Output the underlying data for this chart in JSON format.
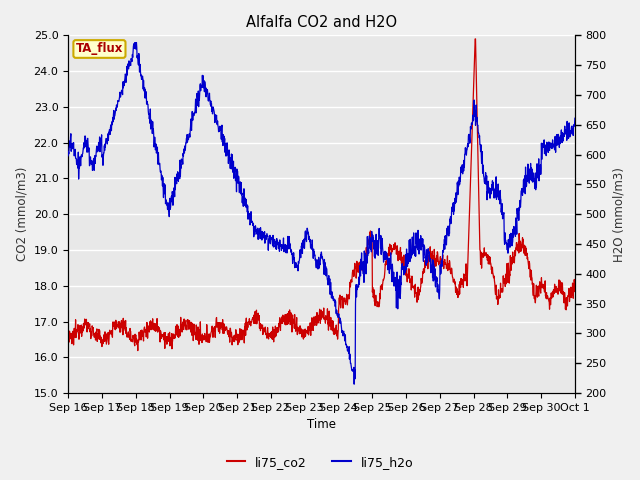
{
  "title": "Alfalfa CO2 and H2O",
  "xlabel": "Time",
  "ylabel_left": "CO2 (mmol/m3)",
  "ylabel_right": "H2O (mmol/m3)",
  "legend_label1": "li75_co2",
  "legend_label2": "li75_h2o",
  "annotation": "TA_flux",
  "color_co2": "#cc0000",
  "color_h2o": "#0000cc",
  "ylim_left": [
    15.0,
    25.0
  ],
  "ylim_right": [
    200,
    800
  ],
  "yticks_left": [
    15.0,
    16.0,
    17.0,
    18.0,
    19.0,
    20.0,
    21.0,
    22.0,
    23.0,
    24.0,
    25.0
  ],
  "yticks_right": [
    200,
    250,
    300,
    350,
    400,
    450,
    500,
    550,
    600,
    650,
    700,
    750,
    800
  ],
  "xtick_labels": [
    "Sep 16",
    "Sep 17",
    "Sep 18",
    "Sep 19",
    "Sep 20",
    "Sep 21",
    "Sep 22",
    "Sep 23",
    "Sep 24",
    "Sep 25",
    "Sep 26",
    "Sep 27",
    "Sep 28",
    "Sep 29",
    "Sep 30",
    "Oct 1"
  ],
  "bg_color": "#f0f0f0",
  "plot_bg_color": "#e8e8e8",
  "annotation_bg": "#ffffcc",
  "annotation_border": "#ccaa00",
  "lw": 0.9
}
